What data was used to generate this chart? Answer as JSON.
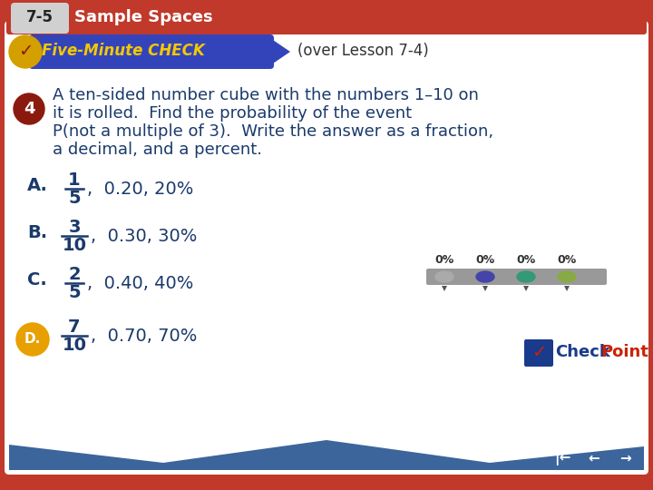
{
  "title_number": "7-5",
  "title_text": "Sample Spaces",
  "five_minute_check_text": "(over Lesson 7-4)",
  "question_number": "4",
  "question_lines": [
    "A ten-sided number cube with the numbers 1–10 on",
    "it is rolled.  Find the probability of the event",
    "P(not a multiple of 3).  Write the answer as a fraction,",
    "a decimal, and a percent."
  ],
  "answers": [
    {
      "label": "A.",
      "frac_num": "1",
      "frac_den": "5",
      "rest": ",  0.20, 20%",
      "highlight": false
    },
    {
      "label": "B.",
      "frac_num": "3",
      "frac_den": "10",
      "rest": ",  0.30, 30%",
      "highlight": false
    },
    {
      "label": "C.",
      "frac_num": "2",
      "frac_den": "5",
      "rest": ",  0.40, 40%",
      "highlight": false
    },
    {
      "label": "D.",
      "frac_num": "7",
      "frac_den": "10",
      "rest": ",  0.70, 70%",
      "highlight": true
    }
  ],
  "bg_white": "#ffffff",
  "bg_content": "#f8f8f8",
  "red_border": "#c0392b",
  "red_dark": "#8b1a0e",
  "blue_text": "#1a3a6b",
  "banner_blue1": "#2b3a9e",
  "banner_blue2": "#3a5abf",
  "banner_yellow": "#f5c800",
  "gold_circle": "#d4a000",
  "d_orange": "#e8a000",
  "d_orange_dark": "#c07000",
  "four_red": "#8b1a0e",
  "nav_blue": "#1a4a8a",
  "poll_dot_colors": [
    "#aaaaaa",
    "#4444aa",
    "#339977",
    "#88aa44"
  ],
  "poll_percentages": [
    "0%",
    "0%",
    "0%",
    "0%"
  ],
  "checkpoint_blue": "#1a3a8b",
  "checkpoint_red": "#cc2200"
}
